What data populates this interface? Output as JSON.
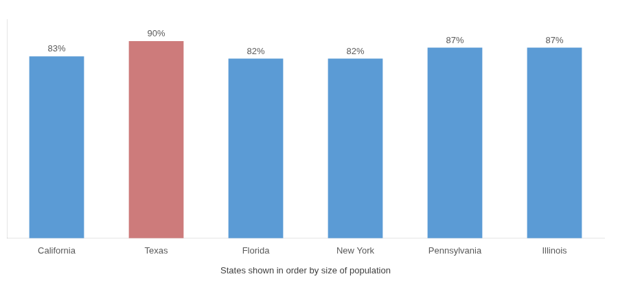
{
  "chart_data": {
    "type": "bar",
    "categories": [
      "California",
      "Texas",
      "Florida",
      "New York",
      "Pennsylvania",
      "Illinois"
    ],
    "values": [
      83,
      90,
      82,
      82,
      87,
      87
    ],
    "value_labels": [
      "83%",
      "90%",
      "82%",
      "82%",
      "87%",
      "87%"
    ],
    "colors": [
      "#5b9bd5",
      "#cd7b7b",
      "#5b9bd5",
      "#5b9bd5",
      "#5b9bd5",
      "#5b9bd5"
    ],
    "xlabel": "States shown in order by size of population",
    "ylim": [
      0,
      100
    ],
    "grid": false,
    "data_labels": true,
    "tick_labels": "x"
  }
}
